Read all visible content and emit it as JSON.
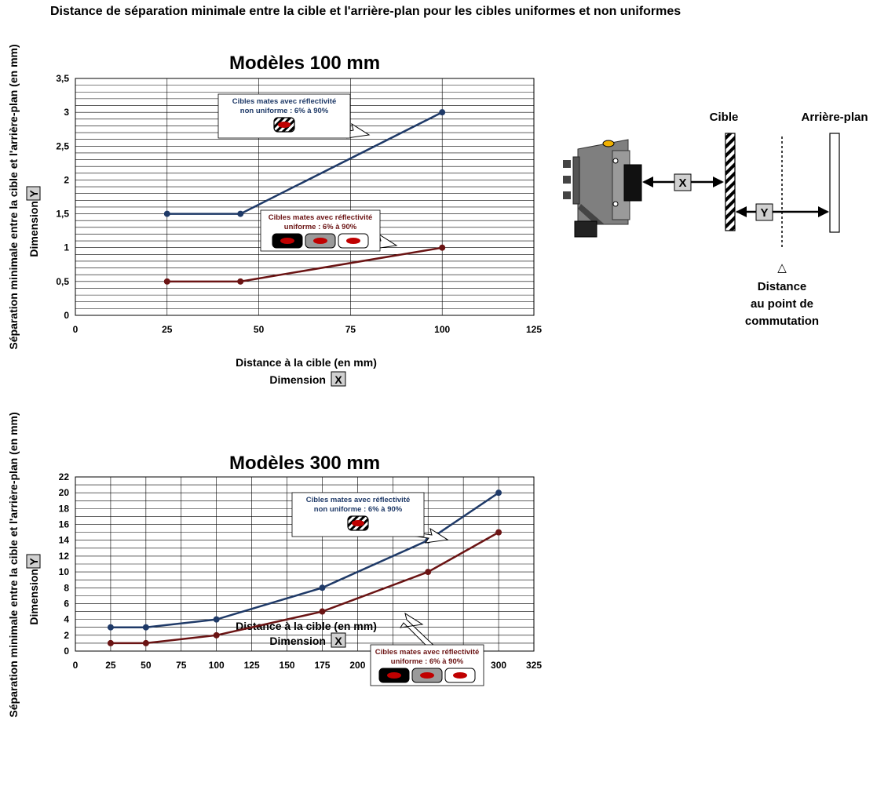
{
  "main_title": "Distance de séparation minimale entre la cible et l'arrière-plan pour les cibles uniformes et non uniformes",
  "colors": {
    "non_uniform": "#1f3a68",
    "uniform": "#6b1414",
    "grid": "#000000",
    "red_dot": "#c00000"
  },
  "chart_data": [
    {
      "type": "line",
      "title": "Modèles 100 mm",
      "xlabel": "Distance à la cible (en mm)",
      "xlabel2": "Dimension",
      "xbadge": "X",
      "ylabel": "Séparation minimale entre la cible et l'arrière-plan (en mm)",
      "ylabel2": "Dimension",
      "ybadge": "Y",
      "xlim": [
        0,
        125
      ],
      "ylim": [
        0,
        3.5
      ],
      "xticks": [
        0,
        25,
        50,
        75,
        100,
        125
      ],
      "yticks": [
        0,
        0.5,
        1,
        1.5,
        2,
        2.5,
        3,
        3.5
      ],
      "xtick_labels": [
        "0",
        "25",
        "50",
        "75",
        "100",
        "125"
      ],
      "ytick_labels": [
        "0",
        "0,5",
        "1",
        "1,5",
        "2",
        "2,5",
        "3",
        "3,5"
      ],
      "grid": true,
      "series": [
        {
          "key": "non_uniform",
          "x": [
            25,
            45,
            100
          ],
          "y": [
            1.5,
            1.5,
            3
          ]
        },
        {
          "key": "uniform",
          "x": [
            25,
            45,
            100
          ],
          "y": [
            0.5,
            0.5,
            1
          ]
        }
      ],
      "callouts": {
        "non_uniform": [
          "Cibles mates avec réflectivité",
          "non uniforme : 6% à 90%"
        ],
        "uniform": [
          "Cibles mates avec réflectivité",
          "uniforme : 6% à 90%"
        ]
      }
    },
    {
      "type": "line",
      "title": "Modèles 300 mm",
      "xlabel": "Distance à la cible (en mm)",
      "xlabel2": "Dimension",
      "xbadge": "X",
      "ylabel": "Séparation minimale entre la cible et l'arrière-plan (en mm)",
      "ylabel2": "Dimension",
      "ybadge": "Y",
      "xlim": [
        0,
        325
      ],
      "ylim": [
        0,
        22
      ],
      "xticks": [
        0,
        25,
        50,
        75,
        100,
        125,
        150,
        175,
        200,
        225,
        250,
        275,
        300,
        325
      ],
      "yticks": [
        0,
        2,
        4,
        6,
        8,
        10,
        12,
        14,
        16,
        18,
        20,
        22
      ],
      "xtick_labels": [
        "0",
        "25",
        "50",
        "75",
        "100",
        "125",
        "150",
        "175",
        "200",
        "225",
        "250",
        "275",
        "300",
        "325"
      ],
      "ytick_labels": [
        "0",
        "2",
        "4",
        "6",
        "8",
        "10",
        "12",
        "14",
        "16",
        "18",
        "20",
        "22"
      ],
      "grid": true,
      "series": [
        {
          "key": "non_uniform",
          "x": [
            25,
            50,
            100,
            175,
            250,
            300
          ],
          "y": [
            3,
            3,
            4,
            8,
            14,
            20
          ]
        },
        {
          "key": "uniform",
          "x": [
            25,
            50,
            100,
            175,
            250,
            300
          ],
          "y": [
            1,
            1,
            2,
            5,
            10,
            15
          ]
        }
      ],
      "callouts": {
        "non_uniform": [
          "Cibles mates avec réflectivité",
          "non uniforme : 6% à 90%"
        ],
        "uniform": [
          "Cibles mates avec réflectivité",
          "uniforme : 6% à 90%"
        ]
      }
    }
  ],
  "diagram": {
    "target_label": "Cible",
    "background_label": "Arrière-plan",
    "x_badge": "X",
    "y_badge": "Y",
    "switch_point_lines": [
      "Distance",
      "au point de",
      "commutation"
    ],
    "switch_point_symbol": "△"
  }
}
